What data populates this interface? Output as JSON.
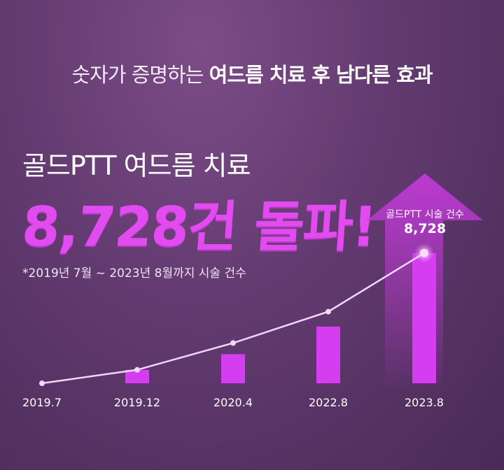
{
  "headline": {
    "light": "숫자가 증명하는",
    "bold": "여드름 치료 후 남다른 효과"
  },
  "subtitle": "골드PTT 여드름 치료",
  "big_number": "8,728건 돌파!",
  "note": "*2019년 7월 ~ 2023년 8월까지 시술 건수",
  "callout": {
    "label": "골드PTT 시술 건수",
    "value": "8,728"
  },
  "colors": {
    "bar": "#d43ef0",
    "line": "#f2d8f8",
    "accent": "#e24bf0",
    "arrow": "#c03ad8"
  },
  "chart_data": {
    "type": "bar",
    "title": "",
    "xlabel": "",
    "ylabel": "",
    "categories": [
      "2019.7",
      "2019.12",
      "2020.4",
      "2022.8",
      "2023.8"
    ],
    "series": [
      {
        "values": [
          0,
          900,
          1950,
          3800,
          8728
        ]
      }
    ],
    "line_values": [
      0,
      900,
      2700,
      4800,
      8728
    ],
    "ylim": [
      0,
      9000
    ],
    "grid": false
  }
}
